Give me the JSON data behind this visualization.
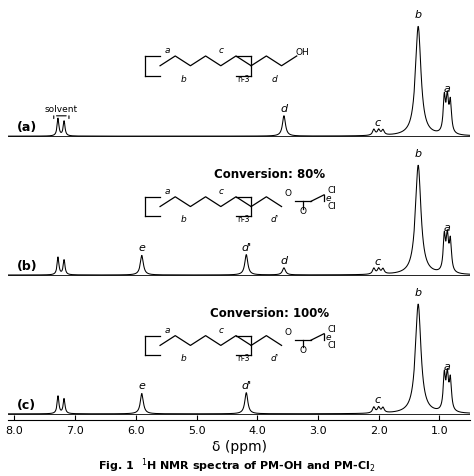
{
  "background_color": "#ffffff",
  "xlabel": "δ (ppm)",
  "xlim_min": 8.1,
  "xlim_max": 0.5,
  "xticks": [
    8.0,
    7.0,
    6.0,
    5.0,
    4.0,
    3.0,
    2.0,
    1.0
  ],
  "xtick_labels": [
    "8.0",
    "7.0",
    "6.0",
    "5.0",
    "4.0",
    "3.0",
    "2.0",
    "1.0"
  ],
  "spectrum_labels": [
    "(a)",
    "(b)",
    "(c)"
  ],
  "conversion_b": "Conversion: 80%",
  "conversion_c": "Conversion: 100%",
  "caption": "Fig. 1",
  "caption_right": " $^1$H NMR spectra of PM-OH and PM-Cl$_2$"
}
